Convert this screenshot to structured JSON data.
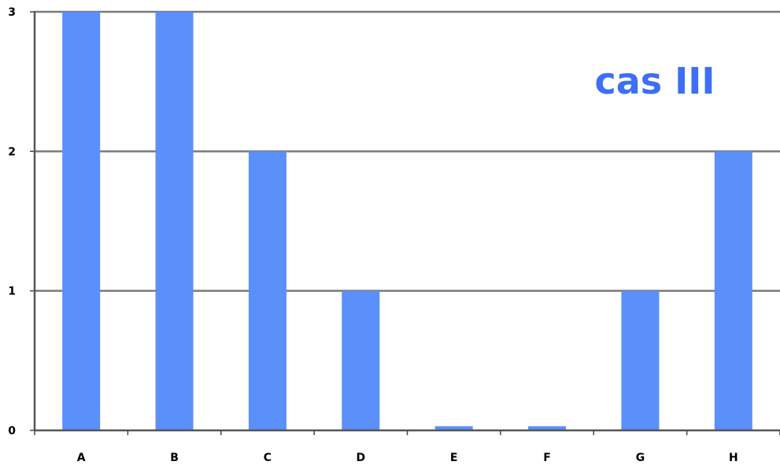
{
  "chart_data": {
    "type": "bar",
    "title": "cas III",
    "categories": [
      "A",
      "B",
      "C",
      "D",
      "E",
      "F",
      "G",
      "H"
    ],
    "values": [
      3,
      3,
      2,
      1,
      0.03,
      0.03,
      1,
      2
    ],
    "y_ticks": [
      "0",
      "1",
      "2",
      "3"
    ],
    "xlabel": "",
    "ylabel": "",
    "ylim": [
      0,
      3
    ],
    "grid": true,
    "bar_color": "#5b8ff9",
    "title_color": "#3d6ef5",
    "axis_color": "#7a7a7a"
  }
}
